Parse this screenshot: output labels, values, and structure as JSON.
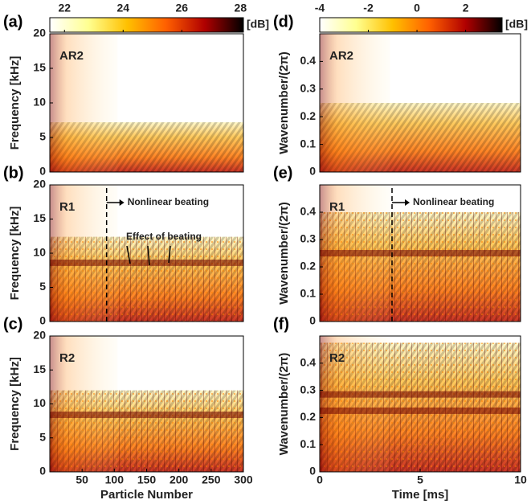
{
  "chart_data": [
    {
      "type": "heatmap",
      "panel": "(a)",
      "label": "AR2",
      "ylabel": "Frequency [kHz]",
      "xlim": [
        0,
        300
      ],
      "ylim": [
        0,
        20
      ],
      "yticks": [
        0,
        5,
        10,
        15,
        20
      ],
      "colorbar": {
        "lim": [
          21.5,
          28.1
        ],
        "ticks": [
          22,
          24,
          26,
          28
        ],
        "label": "[dB]"
      }
    },
    {
      "type": "heatmap",
      "panel": "(b)",
      "label": "R1",
      "ylabel": "Frequency [kHz]",
      "xlim": [
        0,
        300
      ],
      "ylim": [
        0,
        20
      ],
      "yticks": [
        0,
        5,
        10,
        15,
        20
      ],
      "annotations": [
        {
          "text": "Nonlinear beating",
          "x": 88
        },
        {
          "text": "Effect of beating"
        }
      ]
    },
    {
      "type": "heatmap",
      "panel": "(c)",
      "label": "R2",
      "ylabel": "Frequency [kHz]",
      "xlabel": "Particle Number",
      "xlim": [
        0,
        300
      ],
      "xticks": [
        50,
        100,
        150,
        200,
        250,
        300
      ],
      "ylim": [
        0,
        20
      ],
      "yticks": [
        0,
        5,
        10,
        15,
        20
      ]
    },
    {
      "type": "heatmap",
      "panel": "(d)",
      "label": "AR2",
      "ylabel": "Wavenumber/(2π)",
      "xlim": [
        0,
        10
      ],
      "ylim": [
        0,
        0.5
      ],
      "yticks": [
        0,
        0.1,
        0.2,
        0.3,
        0.4
      ],
      "colorbar": {
        "lim": [
          -4,
          3.5
        ],
        "ticks": [
          -4,
          -2,
          0,
          2
        ],
        "label": "[dB]"
      }
    },
    {
      "type": "heatmap",
      "panel": "(e)",
      "label": "R1",
      "ylabel": "Wavenumber/(2π)",
      "xlim": [
        0,
        10
      ],
      "ylim": [
        0,
        0.5
      ],
      "yticks": [
        0,
        0.1,
        0.2,
        0.3,
        0.4
      ],
      "annotations": [
        {
          "text": "Nonlinear beating",
          "x": 3.6
        }
      ]
    },
    {
      "type": "heatmap",
      "panel": "(f)",
      "label": "R2",
      "ylabel": "Wavenumber/(2π)",
      "xlabel": "Time [ms]",
      "xlim": [
        0,
        10
      ],
      "xticks": [
        0,
        5,
        10
      ],
      "ylim": [
        0,
        0.5
      ],
      "yticks": [
        0,
        0.1,
        0.2,
        0.3,
        0.4
      ]
    }
  ]
}
